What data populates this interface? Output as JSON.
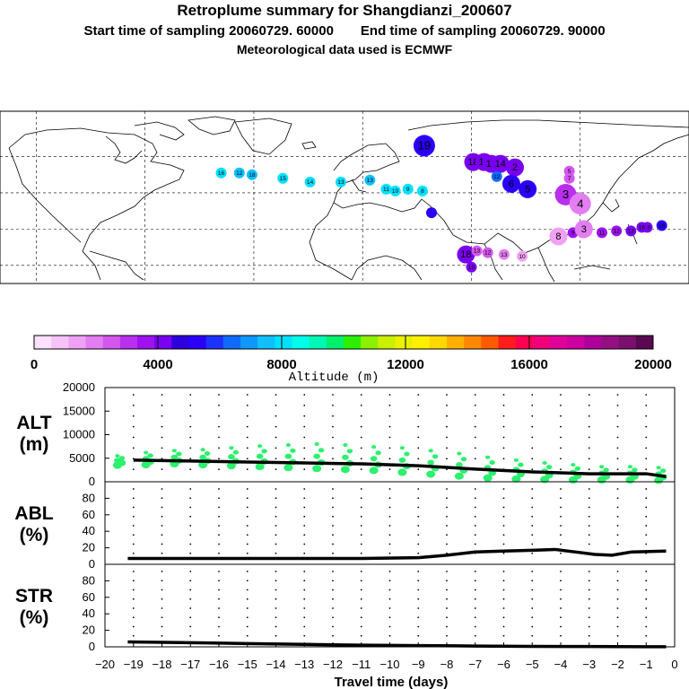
{
  "header": {
    "title": "Retroplume summary for Shangdianzi_200607",
    "start_label": "Start time of sampling 20060729. 60000",
    "end_label": "End time of sampling 20060729. 90000",
    "met_label": "Meteorological data used is ECMWF"
  },
  "colorbar": {
    "label": "Altitude (m)",
    "ticks": [
      "0",
      "4000",
      "8000",
      "12000",
      "16000",
      "20000"
    ],
    "colors": [
      "#fbe1fb",
      "#f6c3f8",
      "#efa2f5",
      "#e37ef2",
      "#d356ef",
      "#b92fee",
      "#9d12ee",
      "#7a00f0",
      "#2d00dc",
      "#2a00f6",
      "#1c32f8",
      "#0f6bfb",
      "#0f98fb",
      "#0fc0fb",
      "#00e0ff",
      "#00ffe6",
      "#00f8b4",
      "#00f06e",
      "#2cf000",
      "#8cf000",
      "#c8f000",
      "#eaf000",
      "#fff000",
      "#ffd800",
      "#ffb000",
      "#ff8800",
      "#ff5a00",
      "#ff1c1c",
      "#ff0050",
      "#f0007a",
      "#e0009a",
      "#cc00a0",
      "#b0009c",
      "#941080",
      "#7a106e",
      "#5a0850"
    ]
  },
  "map": {
    "plume_points": [
      {
        "label": "19",
        "lon": 54,
        "lat": 66,
        "color": "#2a00f6",
        "size": "large"
      },
      {
        "label": "18",
        "lon": 81,
        "lat": 57,
        "color": "#7a00f0",
        "size": "medium"
      },
      {
        "label": "16",
        "lon": 87,
        "lat": 57,
        "color": "#7a00f0",
        "size": "medium"
      },
      {
        "label": "15",
        "lon": 91,
        "lat": 56,
        "color": "#7a00f0",
        "size": "medium"
      },
      {
        "label": "14",
        "lon": 96,
        "lat": 56,
        "color": "#7a00f0",
        "size": "medium"
      },
      {
        "label": "2",
        "lon": 104,
        "lat": 54,
        "color": "#7a00f0",
        "size": "medium"
      },
      {
        "label": "5",
        "lon": 134,
        "lat": 52,
        "color": "#d356ef",
        "size": "small"
      },
      {
        "label": "7",
        "lon": 134,
        "lat": 48,
        "color": "#d356ef",
        "size": "small"
      },
      {
        "label": "12",
        "lon": 94,
        "lat": 49,
        "color": "#0f6bfb",
        "size": "small"
      },
      {
        "label": "6",
        "lon": 102,
        "lat": 45,
        "color": "#2a00f6",
        "size": "medium"
      },
      {
        "label": "5",
        "lon": 111,
        "lat": 42,
        "color": "#2a00f6",
        "size": "medium"
      },
      {
        "label": "3",
        "lon": 132,
        "lat": 39,
        "color": "#b92fee",
        "size": "large"
      },
      {
        "label": "4",
        "lon": 140,
        "lat": 34,
        "color": "#e37ef2",
        "size": "large"
      },
      {
        "label": "19",
        "lon": 185,
        "lat": 22,
        "color": "#2a00f6",
        "size": "small"
      },
      {
        "label": "18",
        "lon": 177,
        "lat": 21,
        "color": "#7a00f0",
        "size": "small"
      },
      {
        "label": "16",
        "lon": 174,
        "lat": 21,
        "color": "#7a00f0",
        "size": "small"
      },
      {
        "label": "13",
        "lon": 168,
        "lat": 19,
        "color": "#7a00f0",
        "size": "small"
      },
      {
        "label": "12",
        "lon": 160,
        "lat": 19,
        "color": "#9d12ee",
        "size": "small"
      },
      {
        "label": "11",
        "lon": 152,
        "lat": 18,
        "color": "#9d12ee",
        "size": "small"
      },
      {
        "label": "9",
        "lon": 136,
        "lat": 18,
        "color": "#9d12ee",
        "size": "small"
      },
      {
        "label": "3",
        "lon": 142,
        "lat": 20,
        "color": "#e37ef2",
        "size": "medium"
      },
      {
        "label": "8",
        "lon": 128,
        "lat": 16,
        "color": "#efa2f5",
        "size": "medium"
      },
      {
        "label": "18",
        "lon": 77,
        "lat": 6,
        "color": "#7a00f0",
        "size": "medium"
      },
      {
        "label": "13",
        "lon": 83,
        "lat": 8,
        "color": "#d356ef",
        "size": "small"
      },
      {
        "label": "12",
        "lon": 89,
        "lat": 7,
        "color": "#d356ef",
        "size": "small"
      },
      {
        "label": "13",
        "lon": 98,
        "lat": 6,
        "color": "#e37ef2",
        "size": "small"
      },
      {
        "label": "10",
        "lon": 108,
        "lat": 5,
        "color": "#efa2f5",
        "size": "small"
      },
      {
        "label": "10",
        "lon": 80,
        "lat": -1,
        "color": "#7a00f0",
        "size": "small"
      },
      {
        "label": "16",
        "lon": -58,
        "lat": 51,
        "color": "#00e0ff",
        "size": "small"
      },
      {
        "label": "12",
        "lon": -48,
        "lat": 51,
        "color": "#0fc0fb",
        "size": "small"
      },
      {
        "label": "18",
        "lon": -41,
        "lat": 50,
        "color": "#0fc0fb",
        "size": "small"
      },
      {
        "label": "15",
        "lon": -24,
        "lat": 48,
        "color": "#00e0ff",
        "size": "small"
      },
      {
        "label": "14",
        "lon": -9,
        "lat": 46,
        "color": "#00e0ff",
        "size": "small"
      },
      {
        "label": "13",
        "lon": 8,
        "lat": 46,
        "color": "#00e0ff",
        "size": "small"
      },
      {
        "label": "13",
        "lon": 24,
        "lat": 47,
        "color": "#0fc0fb",
        "size": "small"
      },
      {
        "label": "11",
        "lon": 33,
        "lat": 42,
        "color": "#00e0ff",
        "size": "small"
      },
      {
        "label": "10",
        "lon": 38,
        "lat": 41,
        "color": "#00e0ff",
        "size": "small"
      },
      {
        "label": "9",
        "lon": 45,
        "lat": 42,
        "color": "#00e0ff",
        "size": "small"
      },
      {
        "label": "8",
        "lon": 53,
        "lat": 41,
        "color": "#00e0ff",
        "size": "small"
      },
      {
        "label": "",
        "lon": 58,
        "lat": 29,
        "color": "#2a00f6",
        "size": "small"
      }
    ]
  },
  "chart_data": [
    {
      "type": "scatter+line",
      "panel_label": "ALT\n(m)",
      "ylabel_lines": [
        "ALT",
        "(m)"
      ],
      "yticks": [
        "20000",
        "15000",
        "10000",
        "5000",
        "0"
      ],
      "ylim": [
        0,
        20000
      ],
      "xlim": [
        -20,
        0
      ],
      "median_line": {
        "x": [
          -19,
          -17,
          -15,
          -13,
          -11,
          -9,
          -7,
          -5,
          -3,
          -1,
          -0.3
        ],
        "y": [
          4600,
          4400,
          4200,
          4000,
          3800,
          3400,
          2700,
          2100,
          1700,
          1700,
          1100
        ]
      },
      "spread_points": {
        "x": [
          -19.5,
          -18.5,
          -17.5,
          -16.5,
          -15.5,
          -14.5,
          -13.5,
          -12.5,
          -11.5,
          -10.5,
          -9.5,
          -8.5,
          -7.5,
          -6.5,
          -5.5,
          -4.5,
          -3.5,
          -2.5,
          -1.5,
          -0.5
        ],
        "min": [
          3500,
          3600,
          3800,
          3600,
          3400,
          3200,
          3000,
          2800,
          2600,
          2400,
          2000,
          1600,
          1200,
          800,
          600,
          500,
          400,
          400,
          400,
          300
        ],
        "max": [
          5500,
          6200,
          6600,
          6800,
          7200,
          7600,
          7800,
          8000,
          7800,
          7400,
          7200,
          6600,
          6000,
          5200,
          4600,
          4000,
          3600,
          3200,
          3200,
          3000
        ]
      }
    },
    {
      "type": "line",
      "panel_label": "ABL\n(%)",
      "ylabel_lines": [
        "ABL",
        "(%)"
      ],
      "yticks": [
        "80",
        "60",
        "40",
        "20",
        "0"
      ],
      "ylim": [
        0,
        100
      ],
      "xlim": [
        -20,
        0
      ],
      "x": [
        -19.2,
        -17,
        -15,
        -13,
        -11,
        -9,
        -8,
        -7,
        -6,
        -5,
        -4.2,
        -3.5,
        -2.8,
        -2.2,
        -1.5,
        -0.3
      ],
      "y": [
        7,
        7,
        7,
        7,
        7,
        8,
        11,
        15,
        16,
        17,
        18,
        15,
        12,
        11,
        15,
        16
      ]
    },
    {
      "type": "line",
      "panel_label": "STR\n(%)",
      "ylabel_lines": [
        "STR",
        "(%)"
      ],
      "yticks": [
        "80",
        "60",
        "40",
        "20",
        "0"
      ],
      "ylim": [
        0,
        100
      ],
      "xlim": [
        -20,
        0
      ],
      "x": [
        -19.2,
        -17,
        -15,
        -13,
        -11,
        -9,
        -7,
        -5,
        -3,
        -1,
        -0.3
      ],
      "y": [
        6,
        5,
        4,
        3,
        2,
        1.5,
        1,
        0.6,
        0.4,
        0.2,
        0.1
      ]
    }
  ],
  "xaxis": {
    "ticks": [
      "−20",
      "−19",
      "−18",
      "−17",
      "−16",
      "−15",
      "−14",
      "−13",
      "−12",
      "−11",
      "−10",
      "−9",
      "−8",
      "−7",
      "−6",
      "−5",
      "−4",
      "−3",
      "−2",
      "−1",
      "0"
    ],
    "label": "Travel time (days)"
  }
}
